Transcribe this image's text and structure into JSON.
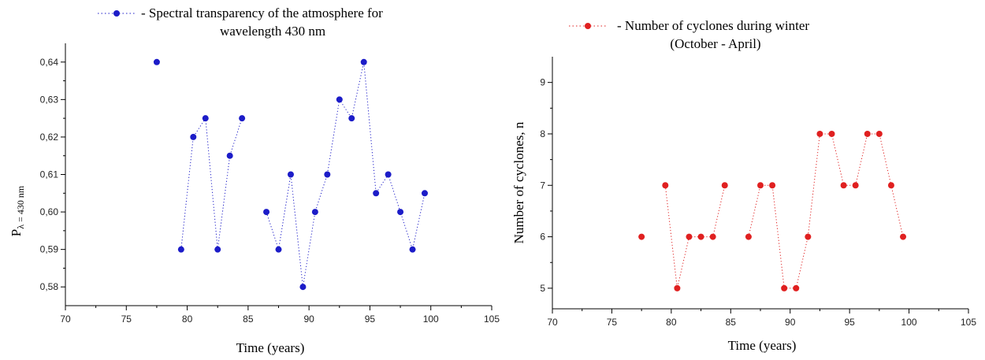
{
  "chart_data": [
    {
      "type": "scatter",
      "title": "Spectral transparency of the atmosphere for",
      "title_line2": "wavelength 430 nm",
      "xlabel": "Time (years)",
      "ylabel_main": "P",
      "ylabel_sub": "λ = 430 nm",
      "xlim": [
        70,
        105
      ],
      "ylim": [
        0.575,
        0.645
      ],
      "xticks": [
        "70",
        "75",
        "80",
        "85",
        "90",
        "95",
        "100",
        "105"
      ],
      "yticks": [
        "0,58",
        "0,59",
        "0,60",
        "0,61",
        "0,62",
        "0,63",
        "0,64"
      ],
      "color": "#1c1cc8",
      "connector": "dotted",
      "segments": [
        [
          [
            77.5,
            0.64
          ]
        ],
        [
          [
            79.5,
            0.59
          ],
          [
            80.5,
            0.62
          ],
          [
            81.5,
            0.625
          ],
          [
            82.5,
            0.59
          ],
          [
            83.5,
            0.615
          ],
          [
            84.5,
            0.625
          ]
        ],
        [
          [
            86.5,
            0.6
          ],
          [
            87.5,
            0.59
          ],
          [
            88.5,
            0.61
          ],
          [
            89.5,
            0.58
          ],
          [
            90.5,
            0.6
          ],
          [
            91.5,
            0.61
          ],
          [
            92.5,
            0.63
          ],
          [
            93.5,
            0.625
          ],
          [
            94.5,
            0.64
          ],
          [
            95.5,
            0.605
          ],
          [
            96.5,
            0.61
          ],
          [
            97.5,
            0.6
          ],
          [
            98.5,
            0.59
          ],
          [
            99.5,
            0.605
          ]
        ]
      ]
    },
    {
      "type": "scatter",
      "title": "Number of cyclones during winter",
      "title_line2": "(October - April)",
      "xlabel": "Time (years)",
      "ylabel_main": "Number of cyclones, n",
      "xlim": [
        70,
        105
      ],
      "ylim": [
        4.6,
        9.5
      ],
      "xticks": [
        "70",
        "75",
        "80",
        "85",
        "90",
        "95",
        "100",
        "105"
      ],
      "yticks": [
        "5",
        "6",
        "7",
        "8",
        "9"
      ],
      "color": "#e02020",
      "connector": "dotted",
      "segments": [
        [
          [
            77.5,
            6
          ]
        ],
        [
          [
            79.5,
            7
          ],
          [
            80.5,
            5
          ],
          [
            81.5,
            6
          ],
          [
            82.5,
            6
          ],
          [
            83.5,
            6
          ],
          [
            84.5,
            7
          ]
        ],
        [
          [
            86.5,
            6
          ],
          [
            87.5,
            7
          ],
          [
            88.5,
            7
          ],
          [
            89.5,
            5
          ],
          [
            90.5,
            5
          ],
          [
            91.5,
            6
          ],
          [
            92.5,
            8
          ],
          [
            93.5,
            8
          ],
          [
            94.5,
            7
          ],
          [
            95.5,
            7
          ],
          [
            96.5,
            8
          ],
          [
            97.5,
            8
          ],
          [
            98.5,
            7
          ],
          [
            99.5,
            6
          ]
        ]
      ]
    }
  ]
}
